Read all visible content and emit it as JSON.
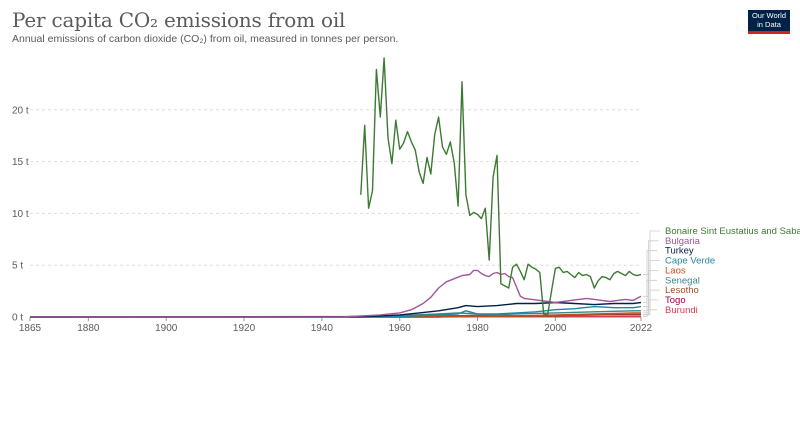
{
  "header": {
    "title": "Per capita CO₂ emissions from oil",
    "subtitle": "Annual emissions of carbon dioxide (CO₂) from oil, measured in tonnes per person."
  },
  "logo": {
    "line1": "Our World",
    "line2": "in Data"
  },
  "colors": {
    "text": "#5b5b5b",
    "grid": "#dddddd",
    "axis": "#999999",
    "logo_bg": "#002147",
    "logo_accent": "#ce261e"
  },
  "chart_data": {
    "type": "line",
    "xlim": [
      1865,
      2022
    ],
    "ylim": [
      0,
      25
    ],
    "x_ticks": [
      1865,
      1880,
      1900,
      1920,
      1940,
      1960,
      1980,
      2000,
      2022
    ],
    "x_tick_labels": [
      "1865",
      "1880",
      "1900",
      "1920",
      "1940",
      "1960",
      "1980",
      "2000",
      "2022"
    ],
    "y_ticks": [
      0,
      5,
      10,
      15,
      20
    ],
    "y_tick_labels": [
      "0 t",
      "5 t",
      "10 t",
      "15 t",
      "20 t"
    ],
    "grid": true,
    "legend_position": "right",
    "series": [
      {
        "name": "Bonaire Sint Eustatius and Saba",
        "color": "#3c7a32",
        "points": [
          [
            1950,
            11.8
          ],
          [
            1951,
            18.5
          ],
          [
            1952,
            10.5
          ],
          [
            1953,
            12.2
          ],
          [
            1954,
            23.9
          ],
          [
            1955,
            19.3
          ],
          [
            1956,
            25
          ],
          [
            1957,
            17.3
          ],
          [
            1958,
            14.8
          ],
          [
            1959,
            19
          ],
          [
            1960,
            16.2
          ],
          [
            1961,
            16.8
          ],
          [
            1962,
            17.9
          ],
          [
            1963,
            16.9
          ],
          [
            1964,
            16.1
          ],
          [
            1965,
            14
          ],
          [
            1966,
            12.9
          ],
          [
            1967,
            15.4
          ],
          [
            1968,
            13.8
          ],
          [
            1969,
            17.6
          ],
          [
            1970,
            19.3
          ],
          [
            1971,
            16.4
          ],
          [
            1972,
            15.7
          ],
          [
            1973,
            16.9
          ],
          [
            1974,
            14.9
          ],
          [
            1975,
            10.7
          ],
          [
            1976,
            22.7
          ],
          [
            1977,
            11.8
          ],
          [
            1978,
            9.8
          ],
          [
            1979,
            10.1
          ],
          [
            1980,
            9.9
          ],
          [
            1981,
            9.5
          ],
          [
            1982,
            10.5
          ],
          [
            1983,
            5.5
          ],
          [
            1984,
            13.5
          ],
          [
            1985,
            15.6
          ],
          [
            1986,
            3.2
          ],
          [
            1987,
            3
          ],
          [
            1988,
            2.8
          ],
          [
            1989,
            4.8
          ],
          [
            1990,
            5.1
          ],
          [
            1991,
            4.4
          ],
          [
            1992,
            3.6
          ],
          [
            1993,
            5.1
          ],
          [
            1994,
            4.8
          ],
          [
            1995,
            4.6
          ],
          [
            1996,
            4.3
          ],
          [
            1997,
            0.3
          ],
          [
            1998,
            0.2
          ],
          [
            1999,
            2.5
          ],
          [
            2000,
            4.7
          ],
          [
            2001,
            4.8
          ],
          [
            2002,
            4.3
          ],
          [
            2003,
            4.4
          ],
          [
            2004,
            4.1
          ],
          [
            2005,
            3.8
          ],
          [
            2006,
            4.3
          ],
          [
            2007,
            4.0
          ],
          [
            2008,
            4.1
          ],
          [
            2009,
            3.9
          ],
          [
            2010,
            2.8
          ],
          [
            2011,
            3.5
          ],
          [
            2012,
            3.9
          ],
          [
            2013,
            3.8
          ],
          [
            2014,
            3.6
          ],
          [
            2015,
            4.2
          ],
          [
            2016,
            4.4
          ],
          [
            2017,
            4.2
          ],
          [
            2018,
            4.0
          ],
          [
            2019,
            4.4
          ],
          [
            2020,
            4.1
          ],
          [
            2021,
            4.0
          ],
          [
            2022,
            4.1
          ]
        ]
      },
      {
        "name": "Bulgaria",
        "color": "#a2559c",
        "points": [
          [
            1865,
            0
          ],
          [
            1945,
            0
          ],
          [
            1950,
            0.1
          ],
          [
            1955,
            0.2
          ],
          [
            1960,
            0.4
          ],
          [
            1963,
            0.7
          ],
          [
            1966,
            1.3
          ],
          [
            1968,
            1.9
          ],
          [
            1970,
            2.8
          ],
          [
            1972,
            3.4
          ],
          [
            1974,
            3.7
          ],
          [
            1976,
            4.0
          ],
          [
            1978,
            4.1
          ],
          [
            1979,
            4.5
          ],
          [
            1980,
            4.5
          ],
          [
            1981,
            4.2
          ],
          [
            1982,
            4.0
          ],
          [
            1983,
            3.9
          ],
          [
            1984,
            4.2
          ],
          [
            1985,
            4.3
          ],
          [
            1986,
            4.1
          ],
          [
            1987,
            4.2
          ],
          [
            1988,
            3.9
          ],
          [
            1989,
            3.8
          ],
          [
            1990,
            2.9
          ],
          [
            1991,
            2.0
          ],
          [
            1992,
            1.8
          ],
          [
            1994,
            1.7
          ],
          [
            1996,
            1.6
          ],
          [
            1998,
            1.5
          ],
          [
            2000,
            1.4
          ],
          [
            2002,
            1.5
          ],
          [
            2004,
            1.6
          ],
          [
            2006,
            1.7
          ],
          [
            2008,
            1.8
          ],
          [
            2010,
            1.7
          ],
          [
            2012,
            1.6
          ],
          [
            2014,
            1.5
          ],
          [
            2016,
            1.6
          ],
          [
            2018,
            1.7
          ],
          [
            2020,
            1.6
          ],
          [
            2021,
            1.8
          ],
          [
            2022,
            2.0
          ]
        ]
      },
      {
        "name": "Turkey",
        "color": "#002147",
        "points": [
          [
            1865,
            0
          ],
          [
            1945,
            0.02
          ],
          [
            1950,
            0.05
          ],
          [
            1955,
            0.1
          ],
          [
            1960,
            0.2
          ],
          [
            1965,
            0.4
          ],
          [
            1970,
            0.6
          ],
          [
            1975,
            0.9
          ],
          [
            1977,
            1.1
          ],
          [
            1980,
            1.0
          ],
          [
            1985,
            1.1
          ],
          [
            1990,
            1.3
          ],
          [
            1995,
            1.3
          ],
          [
            2000,
            1.4
          ],
          [
            2005,
            1.3
          ],
          [
            2010,
            1.2
          ],
          [
            2015,
            1.3
          ],
          [
            2020,
            1.3
          ],
          [
            2022,
            1.4
          ]
        ]
      },
      {
        "name": "Cape Verde",
        "color": "#1e87a0",
        "points": [
          [
            1865,
            0
          ],
          [
            1950,
            0
          ],
          [
            1960,
            0.05
          ],
          [
            1970,
            0.2
          ],
          [
            1975,
            0.3
          ],
          [
            1977,
            0.6
          ],
          [
            1980,
            0.3
          ],
          [
            1985,
            0.3
          ],
          [
            1990,
            0.4
          ],
          [
            1995,
            0.5
          ],
          [
            2000,
            0.7
          ],
          [
            2005,
            0.8
          ],
          [
            2010,
            1.0
          ],
          [
            2015,
            0.9
          ],
          [
            2020,
            0.9
          ],
          [
            2022,
            1.0
          ]
        ]
      },
      {
        "name": "Laos",
        "color": "#c15022",
        "points": [
          [
            1865,
            0
          ],
          [
            1950,
            0
          ],
          [
            1960,
            0.05
          ],
          [
            1970,
            0.1
          ],
          [
            1980,
            0.1
          ],
          [
            1990,
            0.1
          ],
          [
            2000,
            0.2
          ],
          [
            2010,
            0.3
          ],
          [
            2020,
            0.4
          ],
          [
            2022,
            0.4
          ]
        ]
      },
      {
        "name": "Senegal",
        "color": "#3b8686",
        "points": [
          [
            1865,
            0
          ],
          [
            1950,
            0.05
          ],
          [
            1960,
            0.15
          ],
          [
            1970,
            0.3
          ],
          [
            1975,
            0.4
          ],
          [
            1980,
            0.3
          ],
          [
            1985,
            0.2
          ],
          [
            1990,
            0.3
          ],
          [
            2000,
            0.4
          ],
          [
            2010,
            0.5
          ],
          [
            2020,
            0.6
          ],
          [
            2022,
            0.6
          ]
        ]
      },
      {
        "name": "Lesotho",
        "color": "#9a5129",
        "points": [
          [
            1865,
            0
          ],
          [
            1970,
            0
          ],
          [
            1975,
            0.1
          ],
          [
            1980,
            0.1
          ],
          [
            1990,
            0.1
          ],
          [
            2000,
            0.1
          ],
          [
            2010,
            0.2
          ],
          [
            2020,
            0.2
          ],
          [
            2022,
            0.2
          ]
        ]
      },
      {
        "name": "Togo",
        "color": "#970046",
        "points": [
          [
            1865,
            0
          ],
          [
            1950,
            0
          ],
          [
            1960,
            0.05
          ],
          [
            1970,
            0.1
          ],
          [
            1980,
            0.15
          ],
          [
            1990,
            0.1
          ],
          [
            2000,
            0.15
          ],
          [
            2010,
            0.2
          ],
          [
            2020,
            0.25
          ],
          [
            2022,
            0.25
          ]
        ]
      },
      {
        "name": "Burundi",
        "color": "#d73c50",
        "points": [
          [
            1865,
            0
          ],
          [
            1960,
            0
          ],
          [
            1970,
            0.01
          ],
          [
            1980,
            0.02
          ],
          [
            1990,
            0.02
          ],
          [
            2000,
            0.02
          ],
          [
            2010,
            0.03
          ],
          [
            2020,
            0.03
          ],
          [
            2022,
            0.03
          ]
        ]
      }
    ]
  }
}
